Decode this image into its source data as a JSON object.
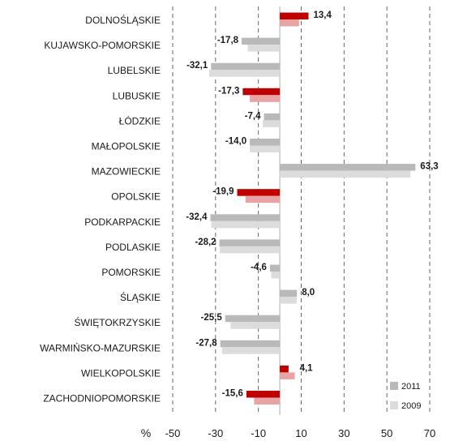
{
  "chart_data": {
    "type": "bar",
    "orientation": "horizontal",
    "unit_label": "%",
    "categories": [
      "DOLNOŚLĄSKIE",
      "KUJAWSKO-POMORSKIE",
      "LUBELSKIE",
      "LUBUSKIE",
      "ŁÓDZKIE",
      "MAŁOPOLSKIE",
      "MAZOWIECKIE",
      "OPOLSKIE",
      "PODKARPACKIE",
      "PODLASKIE",
      "POMORSKIE",
      "ŚLĄSKIE",
      "ŚWIĘTOKRZYSKIE",
      "WARMIŃSKO-MAZURSKIE",
      "WIELKOPOLSKIE",
      "ZACHODNIOPOMORSKIE"
    ],
    "highlight_categories": [
      "DOLNOŚLĄSKIE",
      "LUBUSKIE",
      "OPOLSKIE",
      "WIELKOPOLSKIE",
      "ZACHODNIOPOMORSKIE"
    ],
    "series": [
      {
        "name": "2011",
        "values": [
          13.4,
          -17.8,
          -32.1,
          -17.3,
          -7.4,
          -14.0,
          63.3,
          -19.9,
          -32.4,
          -28.2,
          -4.6,
          8.0,
          -25.5,
          -27.8,
          4.1,
          -15.6
        ],
        "labels": [
          "13,4",
          "-17,8",
          "-32,1",
          "-17,3",
          "-7,4",
          "-14,0",
          "63,3",
          "-19,9",
          "-32,4",
          "-28,2",
          "-4,6",
          "8,0",
          "-25,5",
          "-27,8",
          "4,1",
          "-15,6"
        ]
      },
      {
        "name": "2009",
        "values": [
          9,
          -15,
          -33,
          -14,
          -8,
          -14,
          61,
          -16,
          -32,
          -28,
          -4,
          8,
          -23,
          -27,
          7,
          -12
        ]
      }
    ],
    "xlim": [
      -50,
      70
    ],
    "xticks": [
      -50,
      -30,
      -10,
      10,
      30,
      50,
      70
    ],
    "grid": "vertical dashed",
    "legend_position": "bottom-right",
    "colors": {
      "s2011_default": "#b9b9b9",
      "s2009_default": "#dcdcdc",
      "s2011_highlight": "#c00000",
      "s2009_highlight": "#e8a4a4",
      "grid": "#555555"
    }
  }
}
